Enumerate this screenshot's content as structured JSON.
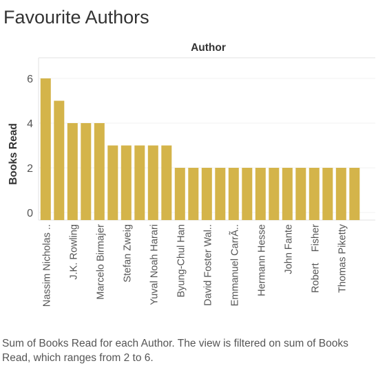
{
  "title": "Favourite Authors",
  "caption": "Sum of Books Read for each Author. The view is filtered on sum of Books Read, which ranges from 2 to 6.",
  "chart_data": {
    "type": "bar",
    "header": "Author",
    "ylabel": "Books Read",
    "xlabel": "",
    "ylim": [
      0,
      7
    ],
    "yticks": [
      0,
      2,
      4,
      6
    ],
    "grid": true,
    "bar_color": "#d4b44a",
    "categories": [
      "Nassim Nicholas ..",
      "",
      "J.K. Rowling",
      "",
      "Marcelo Birmajer",
      "",
      "Stefan Zweig",
      "",
      "Yuval Noah Harari",
      "",
      "Byung-Chul Han",
      "",
      "David Foster Wal..",
      "",
      "Emmanuel CarrÃ..",
      "",
      "Hermann Hesse",
      "",
      "John Fante",
      "",
      "Robert    Fisher",
      "",
      "Thomas Piketty",
      ""
    ],
    "values": [
      6,
      5,
      4,
      4,
      4,
      3,
      3,
      3,
      3,
      3,
      2,
      2,
      2,
      2,
      2,
      2,
      2,
      2,
      2,
      2,
      2,
      2,
      2,
      2
    ]
  }
}
